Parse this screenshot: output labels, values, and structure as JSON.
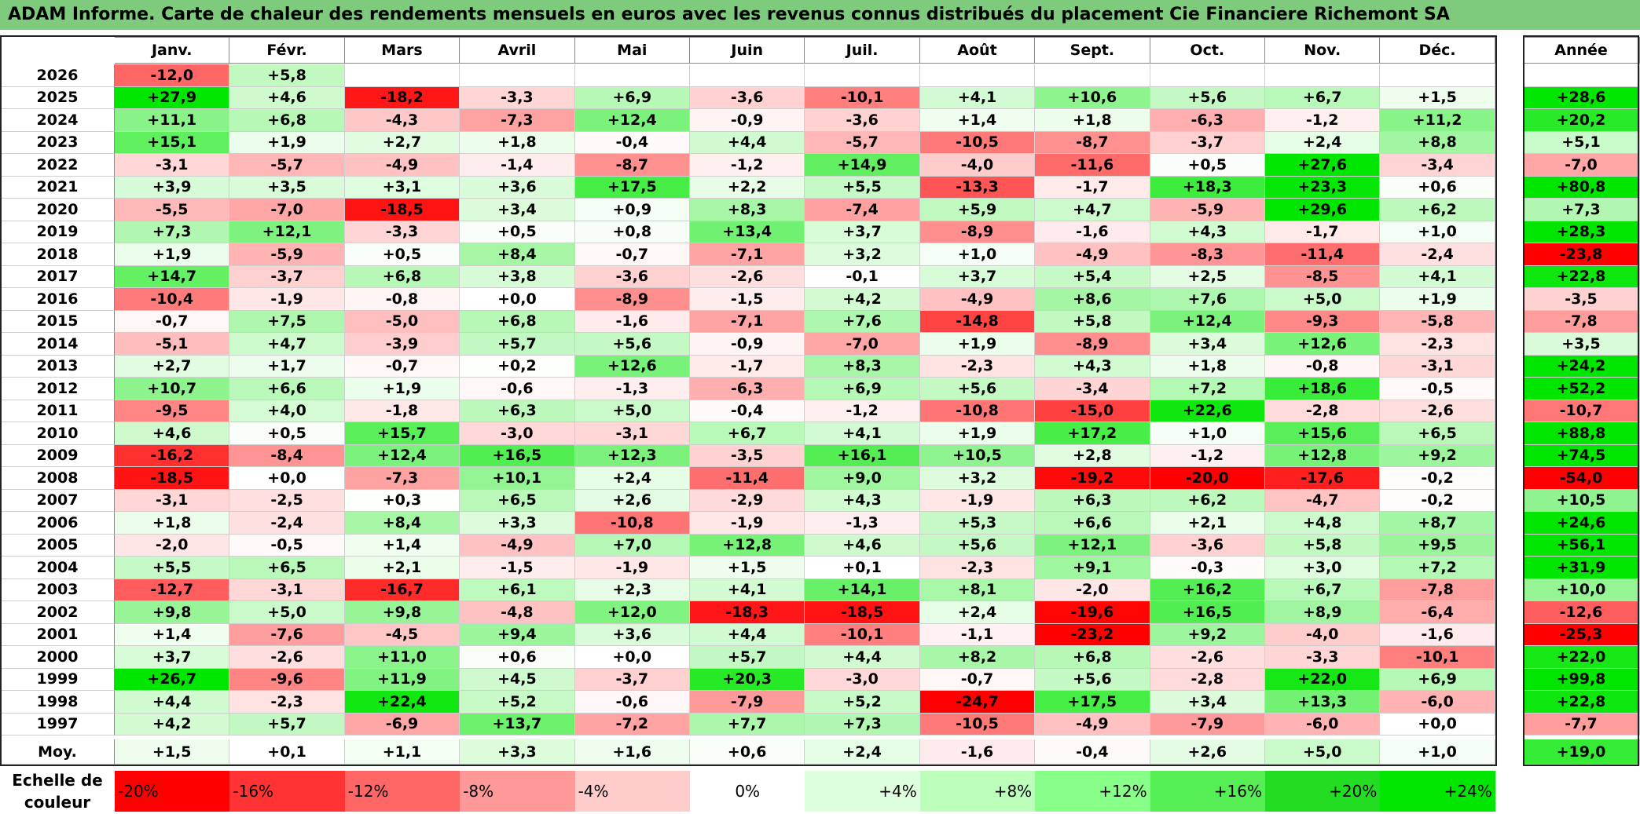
{
  "title": "ADAM Informe. Carte de chaleur des rendements mensuels en euros avec les revenus connus distribués du placement Cie Financiere Richemont SA",
  "chart_data": {
    "type": "heatmap",
    "months": [
      "Janv.",
      "Févr.",
      "Mars",
      "Avril",
      "Mai",
      "Juin",
      "Juil.",
      "Août",
      "Sept.",
      "Oct.",
      "Nov.",
      "Déc."
    ],
    "year_col_label": "Année",
    "rows": [
      {
        "year": "2026",
        "months": [
          "-12,0",
          "+5,8",
          "",
          "",
          "",
          "",
          "",
          "",
          "",
          "",
          "",
          ""
        ],
        "annual": ""
      },
      {
        "year": "2025",
        "months": [
          "+27,9",
          "+4,6",
          "-18,2",
          "-3,3",
          "+6,9",
          "-3,6",
          "-10,1",
          "+4,1",
          "+10,6",
          "+5,6",
          "+6,7",
          "+1,5"
        ],
        "annual": "+28,6"
      },
      {
        "year": "2024",
        "months": [
          "+11,1",
          "+6,8",
          "-4,3",
          "-7,3",
          "+12,4",
          "-0,9",
          "-3,6",
          "+1,4",
          "+1,8",
          "-6,3",
          "-1,2",
          "+11,2"
        ],
        "annual": "+20,2"
      },
      {
        "year": "2023",
        "months": [
          "+15,1",
          "+1,9",
          "+2,7",
          "+1,8",
          "-0,4",
          "+4,4",
          "-5,7",
          "-10,5",
          "-8,7",
          "-3,7",
          "+2,4",
          "+8,8"
        ],
        "annual": "+5,1"
      },
      {
        "year": "2022",
        "months": [
          "-3,1",
          "-5,7",
          "-4,9",
          "-1,4",
          "-8,7",
          "-1,2",
          "+14,9",
          "-4,0",
          "-11,6",
          "+0,5",
          "+27,6",
          "-3,4"
        ],
        "annual": "-7,0"
      },
      {
        "year": "2021",
        "months": [
          "+3,9",
          "+3,5",
          "+3,1",
          "+3,6",
          "+17,5",
          "+2,2",
          "+5,5",
          "-13,3",
          "-1,7",
          "+18,3",
          "+23,3",
          "+0,6"
        ],
        "annual": "+80,8"
      },
      {
        "year": "2020",
        "months": [
          "-5,5",
          "-7,0",
          "-18,5",
          "+3,4",
          "+0,9",
          "+8,3",
          "-7,4",
          "+5,9",
          "+4,7",
          "-5,9",
          "+29,6",
          "+6,2"
        ],
        "annual": "+7,3"
      },
      {
        "year": "2019",
        "months": [
          "+7,3",
          "+12,1",
          "-3,3",
          "+0,5",
          "+0,8",
          "+13,4",
          "+3,7",
          "-8,9",
          "-1,6",
          "+4,3",
          "-1,7",
          "+1,0"
        ],
        "annual": "+28,3"
      },
      {
        "year": "2018",
        "months": [
          "+1,9",
          "-5,9",
          "+0,5",
          "+8,4",
          "-0,7",
          "-7,1",
          "+3,2",
          "+1,0",
          "-4,9",
          "-8,3",
          "-11,4",
          "-2,4"
        ],
        "annual": "-23,8"
      },
      {
        "year": "2017",
        "months": [
          "+14,7",
          "-3,7",
          "+6,8",
          "+3,8",
          "-3,6",
          "-2,6",
          "-0,1",
          "+3,7",
          "+5,4",
          "+2,5",
          "-8,5",
          "+4,1"
        ],
        "annual": "+22,8"
      },
      {
        "year": "2016",
        "months": [
          "-10,4",
          "-1,9",
          "-0,8",
          "+0,0",
          "-8,9",
          "-1,5",
          "+4,2",
          "-4,9",
          "+8,6",
          "+7,6",
          "+5,0",
          "+1,9"
        ],
        "annual": "-3,5"
      },
      {
        "year": "2015",
        "months": [
          "-0,7",
          "+7,5",
          "-5,0",
          "+6,8",
          "-1,6",
          "-7,1",
          "+7,6",
          "-14,8",
          "+5,8",
          "+12,4",
          "-9,3",
          "-5,8"
        ],
        "annual": "-7,8"
      },
      {
        "year": "2014",
        "months": [
          "-5,1",
          "+4,7",
          "-3,9",
          "+5,7",
          "+5,6",
          "-0,9",
          "-7,0",
          "+1,9",
          "-8,9",
          "+3,4",
          "+12,6",
          "-2,3"
        ],
        "annual": "+3,5"
      },
      {
        "year": "2013",
        "months": [
          "+2,7",
          "+1,7",
          "-0,7",
          "+0,2",
          "+12,6",
          "-1,7",
          "+8,3",
          "-2,3",
          "+4,3",
          "+1,8",
          "-0,8",
          "-3,1"
        ],
        "annual": "+24,2"
      },
      {
        "year": "2012",
        "months": [
          "+10,7",
          "+6,6",
          "+1,9",
          "-0,6",
          "-1,3",
          "-6,3",
          "+6,9",
          "+5,6",
          "-3,4",
          "+7,2",
          "+18,6",
          "-0,5"
        ],
        "annual": "+52,2"
      },
      {
        "year": "2011",
        "months": [
          "-9,5",
          "+4,0",
          "-1,8",
          "+6,3",
          "+5,0",
          "-0,4",
          "-1,2",
          "-10,8",
          "-15,0",
          "+22,6",
          "-2,8",
          "-2,6"
        ],
        "annual": "-10,7"
      },
      {
        "year": "2010",
        "months": [
          "+4,6",
          "+0,5",
          "+15,7",
          "-3,0",
          "-3,1",
          "+6,7",
          "+4,1",
          "+1,9",
          "+17,2",
          "+1,0",
          "+15,6",
          "+6,5"
        ],
        "annual": "+88,8"
      },
      {
        "year": "2009",
        "months": [
          "-16,2",
          "-8,4",
          "+12,4",
          "+16,5",
          "+12,3",
          "-3,5",
          "+16,1",
          "+10,5",
          "+2,8",
          "-1,2",
          "+12,8",
          "+9,2"
        ],
        "annual": "+74,5"
      },
      {
        "year": "2008",
        "months": [
          "-18,5",
          "+0,0",
          "-7,3",
          "+10,1",
          "+2,4",
          "-11,4",
          "+9,0",
          "+3,2",
          "-19,2",
          "-20,0",
          "-17,6",
          "-0,2"
        ],
        "annual": "-54,0"
      },
      {
        "year": "2007",
        "months": [
          "-3,1",
          "-2,5",
          "+0,3",
          "+6,5",
          "+2,6",
          "-2,9",
          "+4,3",
          "-1,9",
          "+6,3",
          "+6,2",
          "-4,7",
          "-0,2"
        ],
        "annual": "+10,5"
      },
      {
        "year": "2006",
        "months": [
          "+1,8",
          "-2,4",
          "+8,4",
          "+3,3",
          "-10,8",
          "-1,9",
          "-1,3",
          "+5,3",
          "+6,6",
          "+2,1",
          "+4,8",
          "+8,7"
        ],
        "annual": "+24,6"
      },
      {
        "year": "2005",
        "months": [
          "-2,0",
          "-0,5",
          "+1,4",
          "-4,9",
          "+7,0",
          "+12,8",
          "+4,6",
          "+5,6",
          "+12,1",
          "-3,6",
          "+5,8",
          "+9,5"
        ],
        "annual": "+56,1"
      },
      {
        "year": "2004",
        "months": [
          "+5,5",
          "+6,5",
          "+2,1",
          "-1,5",
          "-1,9",
          "+1,5",
          "+0,1",
          "-2,3",
          "+9,1",
          "-0,3",
          "+3,0",
          "+7,2"
        ],
        "annual": "+31,9"
      },
      {
        "year": "2003",
        "months": [
          "-12,7",
          "-3,1",
          "-16,7",
          "+6,1",
          "+2,3",
          "+4,1",
          "+14,1",
          "+8,1",
          "-2,0",
          "+16,2",
          "+6,7",
          "-7,8"
        ],
        "annual": "+10,0"
      },
      {
        "year": "2002",
        "months": [
          "+9,8",
          "+5,0",
          "+9,8",
          "-4,8",
          "+12,0",
          "-18,3",
          "-18,5",
          "+2,4",
          "-19,6",
          "+16,5",
          "+8,9",
          "-6,4"
        ],
        "annual": "-12,6"
      },
      {
        "year": "2001",
        "months": [
          "+1,4",
          "-7,6",
          "-4,5",
          "+9,4",
          "+3,6",
          "+4,4",
          "-10,1",
          "-1,1",
          "-23,2",
          "+9,2",
          "-4,0",
          "-1,6"
        ],
        "annual": "-25,3"
      },
      {
        "year": "2000",
        "months": [
          "+3,7",
          "-2,6",
          "+11,0",
          "+0,6",
          "+0,0",
          "+5,7",
          "+4,4",
          "+8,2",
          "+6,8",
          "-2,6",
          "-3,3",
          "-10,1"
        ],
        "annual": "+22,0"
      },
      {
        "year": "1999",
        "months": [
          "+26,7",
          "-9,6",
          "+11,9",
          "+4,5",
          "-3,7",
          "+20,3",
          "-3,0",
          "-0,7",
          "+5,6",
          "-2,8",
          "+22,0",
          "+6,9"
        ],
        "annual": "+99,8"
      },
      {
        "year": "1998",
        "months": [
          "+4,4",
          "-2,3",
          "+22,4",
          "+5,2",
          "-0,6",
          "-7,9",
          "+5,2",
          "-24,7",
          "+17,5",
          "+3,4",
          "+13,3",
          "-6,0"
        ],
        "annual": "+22,8"
      },
      {
        "year": "1997",
        "months": [
          "+4,2",
          "+5,7",
          "-6,9",
          "+13,7",
          "-7,2",
          "+7,7",
          "+7,3",
          "-10,5",
          "-4,9",
          "-7,9",
          "-6,0",
          "+0,0"
        ],
        "annual": "-7,7"
      }
    ],
    "average": {
      "label": "Moy.",
      "months": [
        "+1,5",
        "+0,1",
        "+1,1",
        "+3,3",
        "+1,6",
        "+0,6",
        "+2,4",
        "-1,6",
        "-0,4",
        "+2,6",
        "+5,0",
        "+1,0"
      ],
      "annual": "+19,0"
    },
    "scale": {
      "label": "Echelle de couleur",
      "stops": [
        "-20%",
        "-16%",
        "-12%",
        "-8%",
        "-4%",
        "0%",
        "+4%",
        "+8%",
        "+12%",
        "+16%",
        "+20%",
        "+24%"
      ],
      "colors": [
        "#ff0000",
        "#ff3333",
        "#ff6666",
        "#ff9999",
        "#ffcccc",
        "#ffffff",
        "#ddffdd",
        "#bbffbb",
        "#88ff88",
        "#55ee55",
        "#22dd22",
        "#00e600"
      ]
    }
  }
}
